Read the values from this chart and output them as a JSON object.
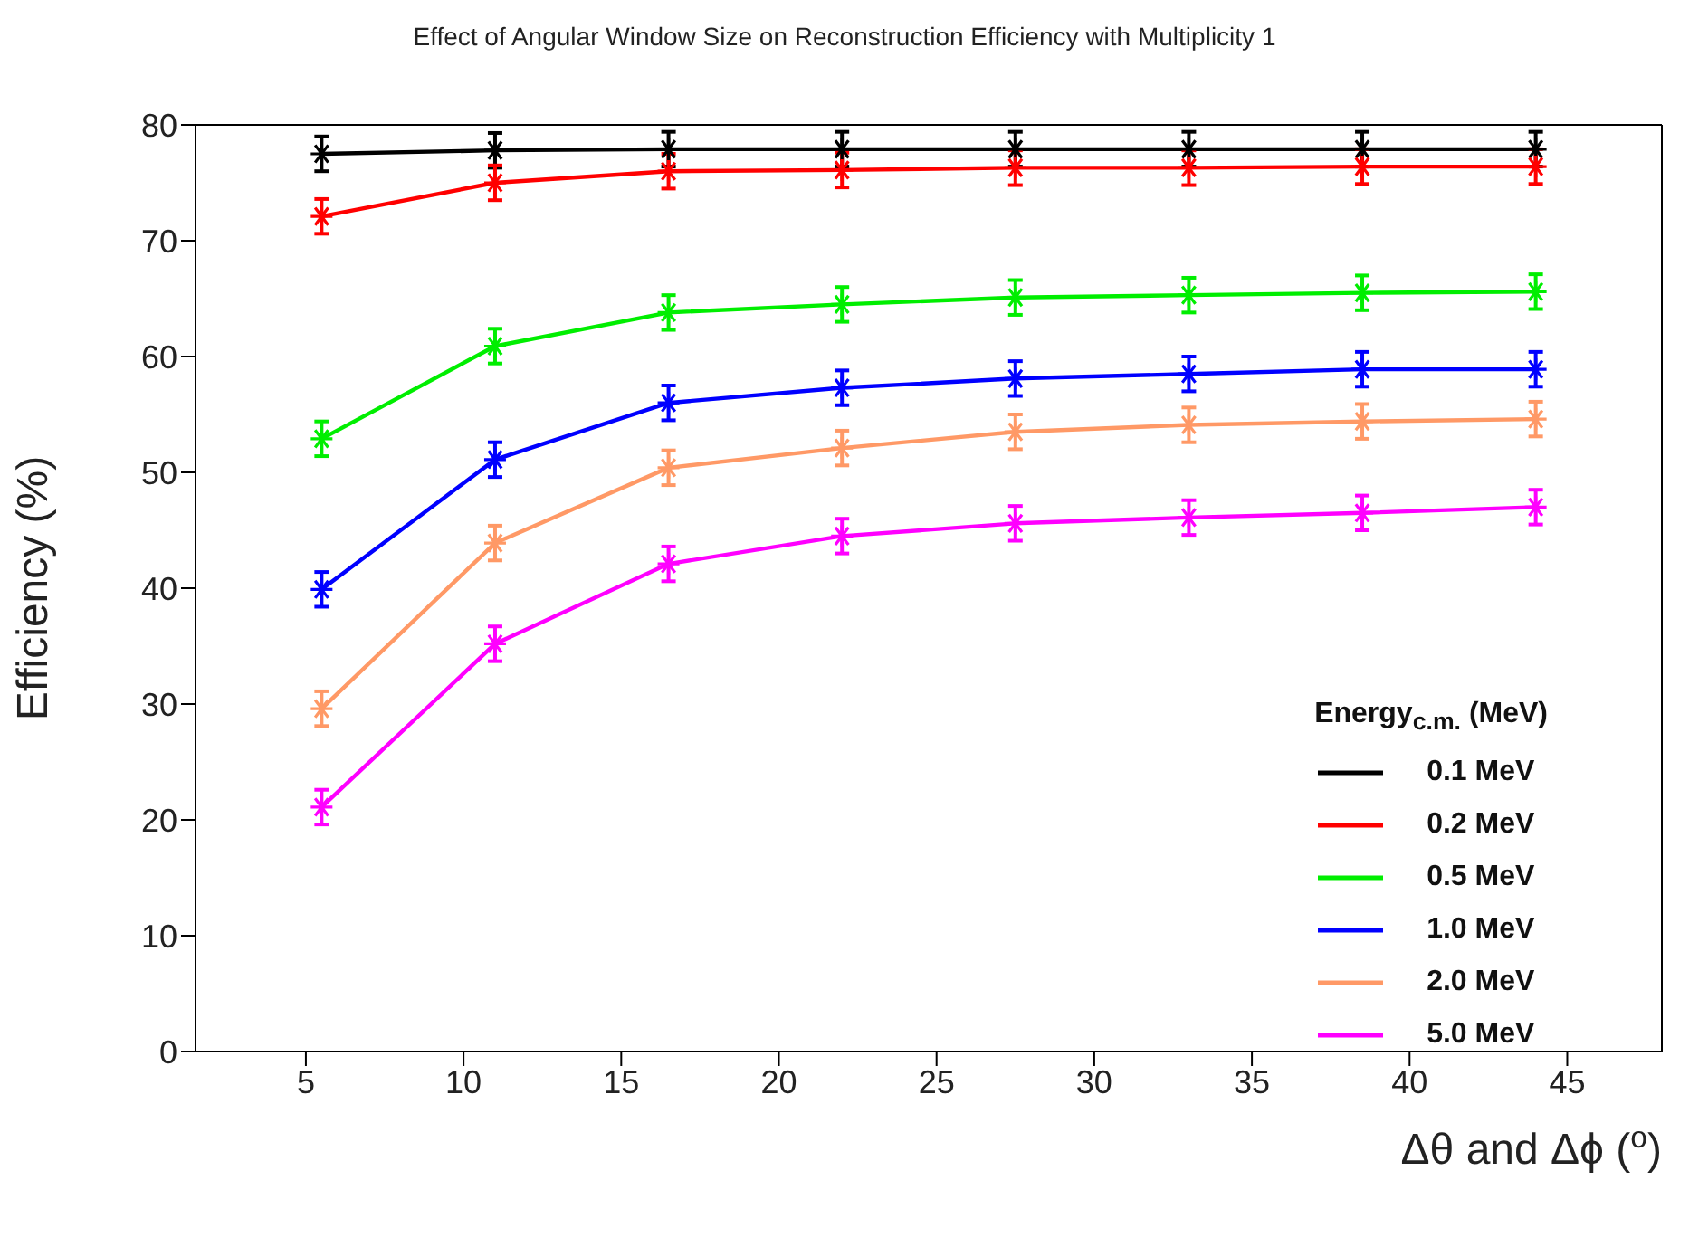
{
  "chart_data": {
    "type": "line",
    "title": "Effect of Angular Window Size on Reconstruction Efficiency with Multiplicity 1",
    "xlabel": "Δθ and Δϕ ($^{o}$)",
    "ylabel": "Efficiency (%)",
    "legend_title": "Energy$_{c.m.}$ (MeV)",
    "x": [
      5.5,
      11,
      16.5,
      22,
      27.5,
      33,
      38.5,
      44
    ],
    "series": [
      {
        "name": "0.1 MeV",
        "color": "#000000",
        "values": [
          77.5,
          77.8,
          77.9,
          77.9,
          77.9,
          77.9,
          77.9,
          77.9
        ],
        "errors": [
          1.5,
          1.5,
          1.5,
          1.5,
          1.5,
          1.5,
          1.5,
          1.5
        ]
      },
      {
        "name": "0.2 MeV",
        "color": "#ff0000",
        "values": [
          72.1,
          75.0,
          76.0,
          76.1,
          76.3,
          76.3,
          76.4,
          76.4
        ],
        "errors": [
          1.5,
          1.5,
          1.5,
          1.5,
          1.5,
          1.5,
          1.5,
          1.5
        ]
      },
      {
        "name": "0.5 MeV",
        "color": "#00ee00",
        "values": [
          52.9,
          60.9,
          63.8,
          64.5,
          65.1,
          65.3,
          65.5,
          65.6
        ],
        "errors": [
          1.5,
          1.5,
          1.5,
          1.5,
          1.5,
          1.5,
          1.5,
          1.5
        ]
      },
      {
        "name": "1.0 MeV",
        "color": "#0000ff",
        "values": [
          39.9,
          51.1,
          56.0,
          57.3,
          58.1,
          58.5,
          58.9,
          58.9
        ],
        "errors": [
          1.5,
          1.5,
          1.5,
          1.5,
          1.5,
          1.5,
          1.5,
          1.5
        ]
      },
      {
        "name": "2.0 MeV",
        "color": "#ff9966",
        "values": [
          29.6,
          43.9,
          50.4,
          52.1,
          53.5,
          54.1,
          54.4,
          54.6
        ],
        "errors": [
          1.5,
          1.5,
          1.5,
          1.5,
          1.5,
          1.5,
          1.5,
          1.5
        ]
      },
      {
        "name": "5.0 MeV",
        "color": "#ff00ff",
        "values": [
          21.1,
          35.2,
          42.1,
          44.5,
          45.6,
          46.1,
          46.5,
          47.0
        ],
        "errors": [
          1.5,
          1.5,
          1.5,
          1.5,
          1.5,
          1.5,
          1.5,
          1.5
        ]
      }
    ],
    "xlim": [
      1.5,
      48
    ],
    "xticks": [
      5,
      10,
      15,
      20,
      25,
      30,
      35,
      40,
      45
    ],
    "ylim": [
      0,
      80
    ],
    "yticks": [
      0,
      10,
      20,
      30,
      40,
      50,
      60,
      70,
      80
    ],
    "grid": false,
    "legend": "bottom right",
    "marker": "cross",
    "line_style": "solid"
  }
}
